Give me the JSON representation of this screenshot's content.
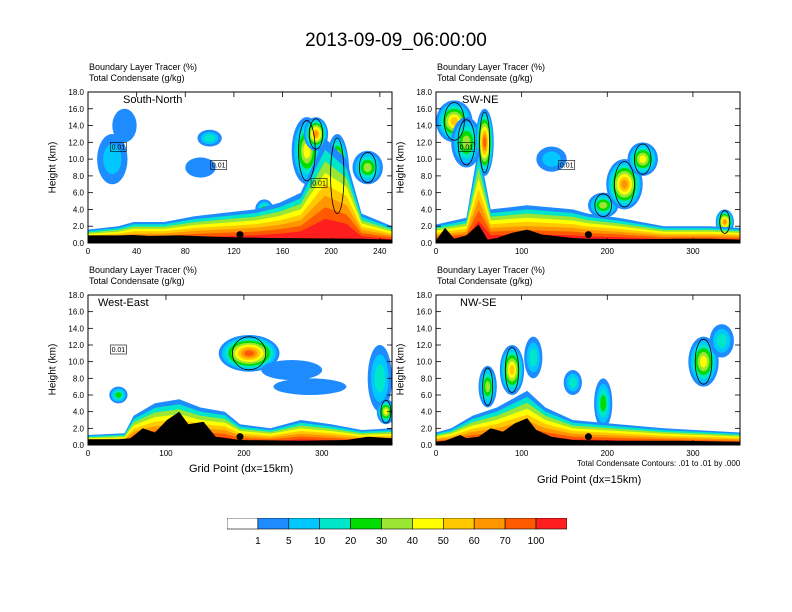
{
  "title": "2013-09-09_06:00:00",
  "field_labels": [
    "Boundary Layer Tracer   (%)",
    "Total Condensate   (g/kg)"
  ],
  "contour_note": "Total Condensate Contours: .01 to .01 by .000",
  "colorbar": {
    "levels": [
      "1",
      "5",
      "10",
      "20",
      "30",
      "40",
      "50",
      "60",
      "70",
      "100"
    ],
    "colors": [
      "#ffffff",
      "#1e8cff",
      "#00c8ff",
      "#00e6c8",
      "#00dc00",
      "#9be632",
      "#ffff00",
      "#ffc800",
      "#ff9600",
      "#ff5a00",
      "#ff1e1e"
    ]
  },
  "chart_data": [
    {
      "type": "heatmap",
      "panel": "South-North",
      "title": "South-North",
      "xlabel": "",
      "ylabel": "Height (km)",
      "xlim": [
        0,
        250
      ],
      "ylim": [
        0,
        18
      ],
      "xticks": [
        "0",
        "40",
        "80",
        "120",
        "160",
        "200",
        "240"
      ],
      "yticks": [
        "0.0",
        "2.0",
        "4.0",
        "6.0",
        "8.0",
        "10.0",
        "12.0",
        "14.0",
        "16.0",
        "18.0"
      ],
      "marker_x": 125,
      "marker_y": 1.0,
      "contour_labels": [
        "0.01",
        "0.01",
        "0.01"
      ]
    },
    {
      "type": "heatmap",
      "panel": "SW-NE",
      "title": "SW-NE",
      "xlabel": "",
      "ylabel": "Height (km)",
      "xlim": [
        0,
        355
      ],
      "ylim": [
        0,
        18
      ],
      "xticks": [
        "0",
        "100",
        "200",
        "300"
      ],
      "yticks": [
        "0.0",
        "2.0",
        "4.0",
        "6.0",
        "8.0",
        "10.0",
        "12.0",
        "14.0",
        "16.0",
        "18.0"
      ],
      "marker_x": 178,
      "marker_y": 1.0,
      "contour_labels": [
        "0.01",
        "0.01"
      ]
    },
    {
      "type": "heatmap",
      "panel": "West-East",
      "title": "West-East",
      "xlabel": "Grid Point (dx=15km)",
      "ylabel": "Height (km)",
      "xlim": [
        0,
        390
      ],
      "ylim": [
        0,
        18
      ],
      "xticks": [
        "0",
        "100",
        "200",
        "300"
      ],
      "yticks": [
        "0.0",
        "2.0",
        "4.0",
        "6.0",
        "8.0",
        "10.0",
        "12.0",
        "14.0",
        "16.0",
        "18.0"
      ],
      "marker_x": 195,
      "marker_y": 1.0,
      "contour_labels": [
        "0.01"
      ]
    },
    {
      "type": "heatmap",
      "panel": "NW-SE",
      "title": "NW-SE",
      "xlabel": "Grid Point (dx=15km)",
      "ylabel": "Height (km)",
      "xlim": [
        0,
        355
      ],
      "ylim": [
        0,
        18
      ],
      "xticks": [
        "0",
        "100",
        "200",
        "300"
      ],
      "yticks": [
        "0.0",
        "2.0",
        "4.0",
        "6.0",
        "8.0",
        "10.0",
        "12.0",
        "14.0",
        "16.0",
        "18.0"
      ],
      "marker_x": 178,
      "marker_y": 1.0,
      "contour_labels": []
    }
  ]
}
